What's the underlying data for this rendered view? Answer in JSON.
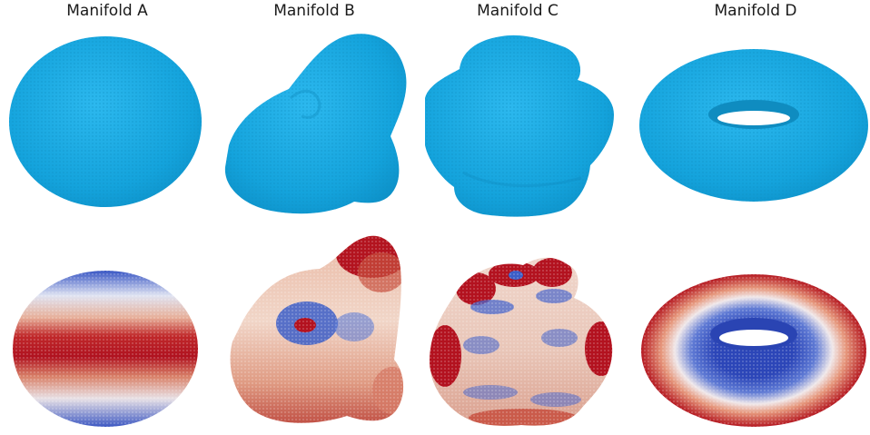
{
  "panels": [
    {
      "title": "Manifold A",
      "shape": "ellipsoid"
    },
    {
      "title": "Manifold B",
      "shape": "bumpy-blob"
    },
    {
      "title": "Manifold C",
      "shape": "bumpy-blob-wavy"
    },
    {
      "title": "Manifold D",
      "shape": "torus"
    }
  ],
  "rows": [
    {
      "coloring": "uniform",
      "color": "#1aa6dc"
    },
    {
      "coloring": "diverging",
      "colormap": [
        "#b01220",
        "#f2ddd0",
        "#2f4fbf"
      ]
    }
  ]
}
